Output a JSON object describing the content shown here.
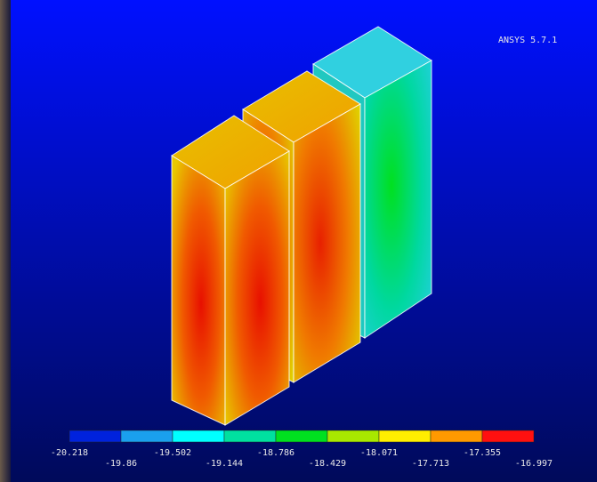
{
  "header": {
    "software": "ANSYS 5.7.1"
  },
  "legend": {
    "colors": [
      "#0022dd",
      "#1aa0ee",
      "#00ffff",
      "#00e0a0",
      "#00e020",
      "#a8e800",
      "#ffee00",
      "#ff9900",
      "#ff1010"
    ],
    "labels": [
      "-20.218",
      "-19.86",
      "-19.502",
      "-19.144",
      "-18.786",
      "-18.429",
      "-18.071",
      "-17.713",
      "-17.355",
      "-16.997"
    ]
  }
}
